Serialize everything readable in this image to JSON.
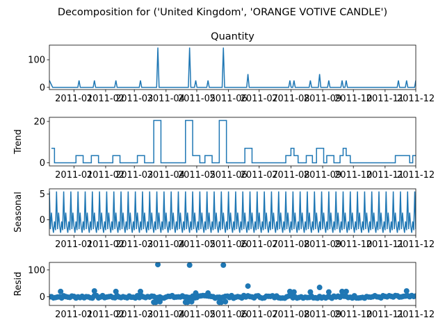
{
  "suptitle": "Decomposition for ('United Kingdom', 'ORANGE VOTIVE CANDLE')",
  "chart_data": {
    "type": "line",
    "x_tick_labels": [
      "2011-01",
      "2011-02",
      "2011-03",
      "2011-04",
      "2011-05",
      "2011-06",
      "2011-07",
      "2011-08",
      "2011-09",
      "2011-10",
      "2011-11",
      "2011-12"
    ],
    "panels": [
      {
        "key": "observed",
        "title": "Quantity",
        "ylabel": "",
        "type": "line",
        "ylim": [
          -8,
          153
        ],
        "yticks": [
          0,
          100
        ],
        "baseline": 0,
        "events": [
          {
            "x": "2010-12-10",
            "y": 25
          },
          {
            "x": "2011-01-06",
            "y": 25
          },
          {
            "x": "2011-01-21",
            "y": 25
          },
          {
            "x": "2011-02-11",
            "y": 25
          },
          {
            "x": "2011-03-07",
            "y": 25
          },
          {
            "x": "2011-03-24",
            "y": 144
          },
          {
            "x": "2011-04-24",
            "y": 144
          },
          {
            "x": "2011-04-30",
            "y": 25
          },
          {
            "x": "2011-05-12",
            "y": 25
          },
          {
            "x": "2011-05-27",
            "y": 144
          },
          {
            "x": "2011-06-20",
            "y": 48
          },
          {
            "x": "2011-07-31",
            "y": 25
          },
          {
            "x": "2011-08-04",
            "y": 25
          },
          {
            "x": "2011-08-20",
            "y": 25
          },
          {
            "x": "2011-08-29",
            "y": 48
          },
          {
            "x": "2011-09-07",
            "y": 25
          },
          {
            "x": "2011-09-20",
            "y": 25
          },
          {
            "x": "2011-09-24",
            "y": 25
          },
          {
            "x": "2011-11-14",
            "y": 25
          },
          {
            "x": "2011-11-22",
            "y": 25
          }
        ]
      },
      {
        "key": "trend",
        "title": "",
        "ylabel": "Trend",
        "type": "step",
        "ylim": [
          -1.5,
          22
        ],
        "yticks": [
          0,
          20
        ],
        "segments": [
          {
            "start": "2010-12-10",
            "end": "2010-12-13",
            "y": 7
          },
          {
            "start": "2010-12-13",
            "end": "2011-01-03",
            "y": 0
          },
          {
            "start": "2011-01-03",
            "end": "2011-01-10",
            "y": 3.5
          },
          {
            "start": "2011-01-10",
            "end": "2011-01-18",
            "y": 0
          },
          {
            "start": "2011-01-18",
            "end": "2011-01-25",
            "y": 3.5
          },
          {
            "start": "2011-01-25",
            "end": "2011-02-08",
            "y": 0
          },
          {
            "start": "2011-02-08",
            "end": "2011-02-15",
            "y": 3.5
          },
          {
            "start": "2011-02-15",
            "end": "2011-03-04",
            "y": 0
          },
          {
            "start": "2011-03-04",
            "end": "2011-03-11",
            "y": 3.5
          },
          {
            "start": "2011-03-11",
            "end": "2011-03-20",
            "y": 0
          },
          {
            "start": "2011-03-20",
            "end": "2011-03-27",
            "y": 20.5
          },
          {
            "start": "2011-03-27",
            "end": "2011-04-20",
            "y": 0
          },
          {
            "start": "2011-04-20",
            "end": "2011-04-27",
            "y": 20.5
          },
          {
            "start": "2011-04-27",
            "end": "2011-05-04",
            "y": 3.5
          },
          {
            "start": "2011-05-04",
            "end": "2011-05-09",
            "y": 0
          },
          {
            "start": "2011-05-09",
            "end": "2011-05-16",
            "y": 3.5
          },
          {
            "start": "2011-05-16",
            "end": "2011-05-23",
            "y": 0
          },
          {
            "start": "2011-05-23",
            "end": "2011-05-30",
            "y": 20.5
          },
          {
            "start": "2011-05-30",
            "end": "2011-06-17",
            "y": 0
          },
          {
            "start": "2011-06-17",
            "end": "2011-06-24",
            "y": 7
          },
          {
            "start": "2011-06-24",
            "end": "2011-07-27",
            "y": 0
          },
          {
            "start": "2011-07-27",
            "end": "2011-08-01",
            "y": 3.5
          },
          {
            "start": "2011-08-01",
            "end": "2011-08-04",
            "y": 7
          },
          {
            "start": "2011-08-04",
            "end": "2011-08-08",
            "y": 3.5
          },
          {
            "start": "2011-08-08",
            "end": "2011-08-16",
            "y": 0
          },
          {
            "start": "2011-08-16",
            "end": "2011-08-22",
            "y": 3.5
          },
          {
            "start": "2011-08-22",
            "end": "2011-08-26",
            "y": 0
          },
          {
            "start": "2011-08-26",
            "end": "2011-09-02",
            "y": 7
          },
          {
            "start": "2011-09-02",
            "end": "2011-09-05",
            "y": 0
          },
          {
            "start": "2011-09-05",
            "end": "2011-09-12",
            "y": 3.5
          },
          {
            "start": "2011-09-12",
            "end": "2011-09-18",
            "y": 0
          },
          {
            "start": "2011-09-18",
            "end": "2011-09-21",
            "y": 3.5
          },
          {
            "start": "2011-09-21",
            "end": "2011-09-24",
            "y": 7
          },
          {
            "start": "2011-09-24",
            "end": "2011-09-28",
            "y": 3.5
          },
          {
            "start": "2011-09-28",
            "end": "2011-11-11",
            "y": 0
          },
          {
            "start": "2011-11-11",
            "end": "2011-11-25",
            "y": 3.5
          },
          {
            "start": "2011-11-25",
            "end": "2011-11-28",
            "y": 0
          },
          {
            "start": "2011-11-28",
            "end": "2011-12-01",
            "y": 3.5
          }
        ]
      },
      {
        "key": "seasonal",
        "title": "",
        "ylabel": "Seasonal",
        "type": "line",
        "ylim": [
          -3,
          6
        ],
        "yticks": [
          0,
          5
        ],
        "period_days": 7,
        "weekly_pattern": [
          5.5,
          -1.8,
          1.4,
          -1.2,
          -2.5,
          -0.3,
          -2.0
        ]
      },
      {
        "key": "resid",
        "title": "",
        "ylabel": "Resid",
        "type": "scatter",
        "ylim": [
          -32,
          128
        ],
        "yticks": [
          0,
          100
        ],
        "outliers": [
          {
            "x": "2010-12-19",
            "y": 20
          },
          {
            "x": "2011-01-21",
            "y": 22
          },
          {
            "x": "2011-02-11",
            "y": 20
          },
          {
            "x": "2011-03-07",
            "y": 20
          },
          {
            "x": "2011-03-24",
            "y": 120
          },
          {
            "x": "2011-04-24",
            "y": 118
          },
          {
            "x": "2011-04-30",
            "y": 14
          },
          {
            "x": "2011-05-12",
            "y": 14
          },
          {
            "x": "2011-05-27",
            "y": 118
          },
          {
            "x": "2011-06-20",
            "y": 40
          },
          {
            "x": "2011-07-31",
            "y": 20
          },
          {
            "x": "2011-08-04",
            "y": 18
          },
          {
            "x": "2011-08-20",
            "y": 18
          },
          {
            "x": "2011-08-29",
            "y": 35
          },
          {
            "x": "2011-09-07",
            "y": 18
          },
          {
            "x": "2011-09-20",
            "y": 20
          },
          {
            "x": "2011-09-24",
            "y": 20
          },
          {
            "x": "2011-11-22",
            "y": 22
          }
        ],
        "dips": [
          {
            "x": "2011-03-20",
            "y": -20
          },
          {
            "x": "2011-03-22",
            "y": -20
          },
          {
            "x": "2011-03-26",
            "y": -18
          },
          {
            "x": "2011-04-20",
            "y": -20
          },
          {
            "x": "2011-04-22",
            "y": -20
          },
          {
            "x": "2011-04-26",
            "y": -18
          },
          {
            "x": "2011-05-23",
            "y": -20
          },
          {
            "x": "2011-05-25",
            "y": -20
          },
          {
            "x": "2011-05-29",
            "y": -18
          }
        ]
      }
    ],
    "x_range": [
      "2010-12-08",
      "2011-12-01"
    ],
    "color": "#1f77b4"
  }
}
